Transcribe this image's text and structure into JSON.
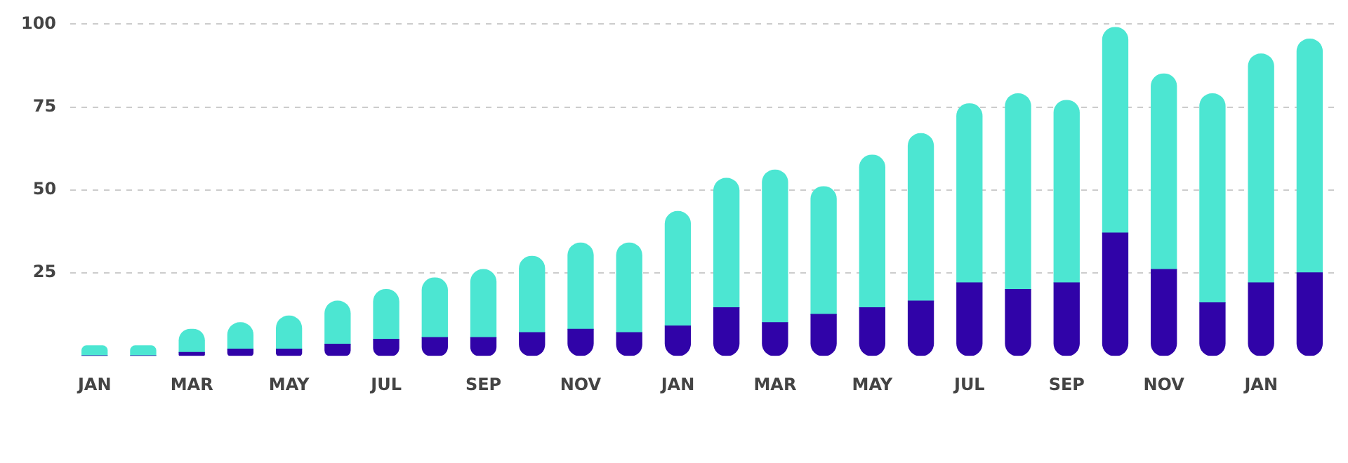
{
  "chart_data": {
    "type": "bar",
    "stacked": true,
    "categories": [
      "JAN",
      null,
      "MAR",
      null,
      "MAY",
      null,
      "JUL",
      null,
      "SEP",
      null,
      "NOV",
      null,
      "JAN",
      null,
      "MAR",
      null,
      "MAY",
      null,
      "JUL",
      null,
      "SEP",
      null,
      "NOV",
      null,
      "JAN",
      null
    ],
    "series": [
      {
        "color": "#3003a8",
        "values": [
          0,
          0,
          1,
          2,
          2,
          3.5,
          5,
          5.5,
          5.5,
          7,
          8,
          7,
          9,
          14.5,
          10,
          12.5,
          14.5,
          16.5,
          22,
          20,
          22,
          37,
          26,
          16,
          22,
          25
        ]
      },
      {
        "color": "#4ce6d2",
        "values": [
          3,
          3,
          7,
          8,
          10,
          13,
          15,
          18,
          20.5,
          23,
          26,
          27,
          34.5,
          39,
          46,
          38.5,
          46,
          50.5,
          54,
          59,
          55,
          62,
          59,
          63,
          69,
          70.5
        ]
      }
    ],
    "ylim": [
      0,
      100
    ],
    "yticks": [
      25,
      50,
      75,
      100
    ],
    "grid": "y",
    "legend": false
  }
}
